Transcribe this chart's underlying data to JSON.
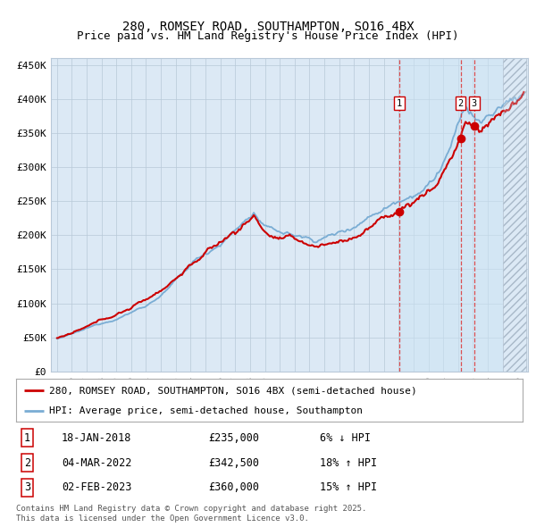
{
  "title": "280, ROMSEY ROAD, SOUTHAMPTON, SO16 4BX",
  "subtitle": "Price paid vs. HM Land Registry's House Price Index (HPI)",
  "legend_label_red": "280, ROMSEY ROAD, SOUTHAMPTON, SO16 4BX (semi-detached house)",
  "legend_label_blue": "HPI: Average price, semi-detached house, Southampton",
  "footer": "Contains HM Land Registry data © Crown copyright and database right 2025.\nThis data is licensed under the Open Government Licence v3.0.",
  "sale_dates": [
    "18-JAN-2018",
    "04-MAR-2022",
    "02-FEB-2023"
  ],
  "sale_prices": [
    235000,
    342500,
    360000
  ],
  "sale_hpi_diff": [
    "6% ↓ HPI",
    "18% ↑ HPI",
    "15% ↑ HPI"
  ],
  "sale_labels": [
    "1",
    "2",
    "3"
  ],
  "ylim": [
    0,
    460000
  ],
  "yticks": [
    0,
    50000,
    100000,
    150000,
    200000,
    250000,
    300000,
    350000,
    400000,
    450000
  ],
  "ytick_labels": [
    "£0",
    "£50K",
    "£100K",
    "£150K",
    "£200K",
    "£250K",
    "£300K",
    "£350K",
    "£400K",
    "£450K"
  ],
  "xstart": 1995,
  "xend": 2026,
  "background_color": "#ffffff",
  "plot_bg_color": "#dce9f5",
  "grid_color": "#b8c8d8",
  "red_color": "#cc0000",
  "blue_color": "#7aadd4",
  "hatch_color": "#a8b8c8",
  "dashed_line_color": "#dd3333",
  "sale_marker_color": "#cc0000",
  "highlight_color": "#c8ddf0",
  "title_fontsize": 10,
  "subtitle_fontsize": 9,
  "axis_fontsize": 8,
  "legend_fontsize": 8,
  "table_fontsize": 8.5,
  "footer_fontsize": 6.5,
  "t_future": 2025.0,
  "t1": 2018.046,
  "t2": 2022.169,
  "t3": 2023.088
}
